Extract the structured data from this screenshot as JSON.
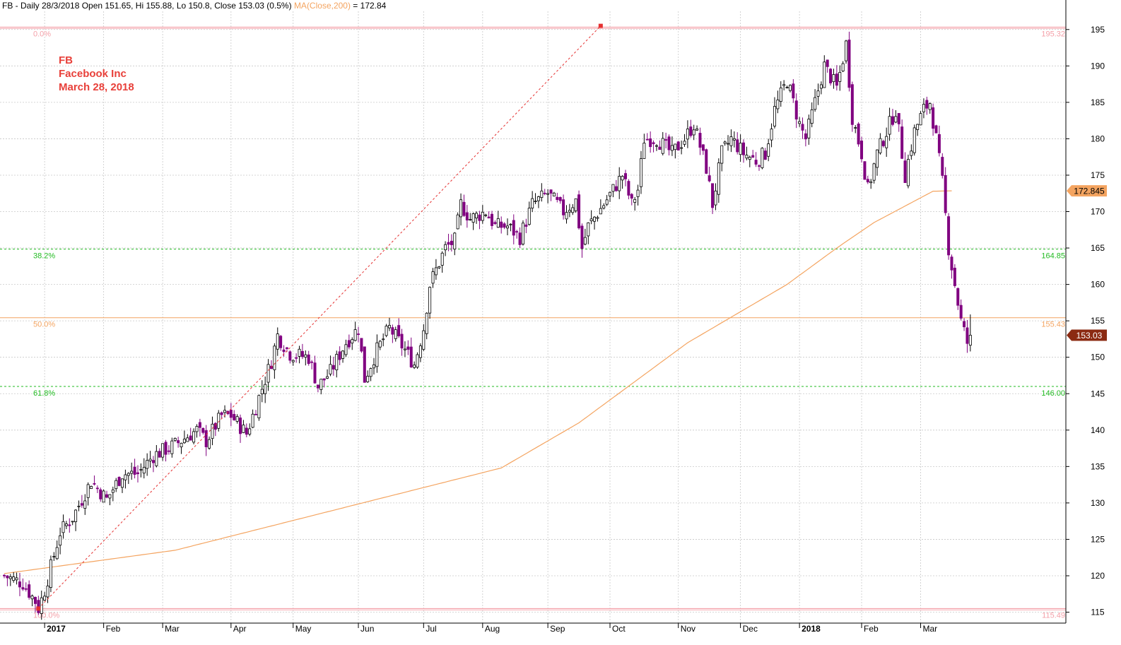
{
  "header": {
    "prefix": "FB - Daily 28/3/2018 Open 151.65, Hi 155.88, Lo 150.8, Close 153.03 (0.5%) ",
    "ma_label": "MA(Close,200)",
    "ma_value": " = 172.84"
  },
  "info": {
    "symbol": "FB",
    "company": "Facebook Inc",
    "date": "March 28, 2018"
  },
  "colors": {
    "up_candle": "#000000",
    "down_candle": "#800080",
    "ma_line": "#f4a460",
    "fib_extreme": "#f4a0a8",
    "fib_382_618": "#22bb22",
    "fib_500": "#f4a460",
    "trend_line": "#e53030",
    "grid": "#c8c8c8",
    "last_price_tag": "#8b2a12",
    "ma_tag": "#f4a460"
  },
  "chart_data": {
    "type": "candlestick",
    "y_range": [
      113.5,
      197.5
    ],
    "y_ticks": [
      115,
      120,
      125,
      130,
      135,
      140,
      145,
      150,
      155,
      160,
      165,
      170,
      175,
      180,
      185,
      190,
      195
    ],
    "x_labels": [
      {
        "label": "2017",
        "bold": true
      },
      {
        "label": "Feb"
      },
      {
        "label": "Mar"
      },
      {
        "label": "Apr"
      },
      {
        "label": "May"
      },
      {
        "label": "Jun"
      },
      {
        "label": "Jul"
      },
      {
        "label": "Aug"
      },
      {
        "label": "Sep"
      },
      {
        "label": "Oct"
      },
      {
        "label": "Nov"
      },
      {
        "label": "Dec"
      },
      {
        "label": "2018",
        "bold": true
      },
      {
        "label": "Feb"
      },
      {
        "label": "Mar"
      }
    ],
    "fib_levels": [
      {
        "pct": "0.0%",
        "value": 195.32
      },
      {
        "pct": "38.2%",
        "value": 164.85
      },
      {
        "pct": "50.0%",
        "value": 155.43
      },
      {
        "pct": "61.8%",
        "value": 146.0
      },
      {
        "pct": "100.0%",
        "value": 115.49
      }
    ],
    "price_tags": {
      "ma200": "172.845",
      "last_close": "153.03"
    },
    "ma200_anchors": [
      [
        0,
        120.3
      ],
      [
        55,
        123.5
      ],
      [
        120,
        130.5
      ],
      [
        160,
        134.8
      ],
      [
        185,
        141
      ],
      [
        220,
        152
      ],
      [
        252,
        160
      ],
      [
        268,
        165
      ],
      [
        280,
        168.5
      ],
      [
        299,
        172.8
      ],
      [
        305,
        172.85
      ]
    ],
    "fib_trendline": {
      "from": [
        11,
        115.5
      ],
      "to": [
        192,
        195.5
      ]
    },
    "close_anchors": [
      [
        0,
        120
      ],
      [
        6,
        119
      ],
      [
        10,
        116.5
      ],
      [
        11,
        115.5
      ],
      [
        13,
        118
      ],
      [
        18,
        126
      ],
      [
        22,
        128
      ],
      [
        28,
        133
      ],
      [
        33,
        130.5
      ],
      [
        38,
        134
      ],
      [
        43,
        134
      ],
      [
        48,
        136.5
      ],
      [
        55,
        138
      ],
      [
        62,
        140
      ],
      [
        65,
        138.5
      ],
      [
        70,
        142
      ],
      [
        73,
        142
      ],
      [
        78,
        139.5
      ],
      [
        82,
        144.5
      ],
      [
        86,
        149.5
      ],
      [
        88,
        153
      ],
      [
        92,
        150.5
      ],
      [
        98,
        150
      ],
      [
        101,
        146
      ],
      [
        105,
        148
      ],
      [
        110,
        152
      ],
      [
        114,
        154
      ],
      [
        116,
        147
      ],
      [
        120,
        151
      ],
      [
        124,
        154
      ],
      [
        129,
        151
      ],
      [
        132,
        149
      ],
      [
        135,
        154
      ],
      [
        137,
        160
      ],
      [
        139,
        162
      ],
      [
        142,
        165
      ],
      [
        145,
        166
      ],
      [
        147,
        171
      ],
      [
        150,
        169
      ],
      [
        155,
        170
      ],
      [
        158,
        168
      ],
      [
        162,
        168
      ],
      [
        166,
        166.5
      ],
      [
        170,
        171
      ],
      [
        175,
        172.5
      ],
      [
        180,
        170
      ],
      [
        184,
        171.5
      ],
      [
        186,
        165
      ],
      [
        188,
        168
      ],
      [
        193,
        171
      ],
      [
        196,
        173
      ],
      [
        199,
        175
      ],
      [
        202,
        171
      ],
      [
        204,
        173
      ],
      [
        206,
        180
      ],
      [
        210,
        180
      ],
      [
        215,
        178
      ],
      [
        219,
        180
      ],
      [
        222,
        182
      ],
      [
        226,
        176
      ],
      [
        228,
        171
      ],
      [
        231,
        178
      ],
      [
        234,
        180
      ],
      [
        238,
        178
      ],
      [
        242,
        177
      ],
      [
        245,
        178
      ],
      [
        248,
        184
      ],
      [
        252,
        188
      ],
      [
        256,
        182
      ],
      [
        258,
        180
      ],
      [
        261,
        185
      ],
      [
        264,
        190
      ],
      [
        268,
        187
      ],
      [
        271,
        193
      ],
      [
        273,
        183
      ],
      [
        276,
        178
      ],
      [
        278,
        173
      ],
      [
        281,
        178
      ],
      [
        284,
        181
      ],
      [
        287,
        184
      ],
      [
        290,
        175
      ],
      [
        293,
        181
      ],
      [
        296,
        184
      ],
      [
        298,
        185
      ],
      [
        300,
        180
      ],
      [
        302,
        174
      ],
      [
        304,
        165
      ],
      [
        306,
        160
      ],
      [
        308,
        155
      ],
      [
        310,
        152
      ],
      [
        311,
        153.03
      ]
    ],
    "n_bars": 312,
    "last_bar": {
      "open": 151.65,
      "high": 155.88,
      "low": 150.8,
      "close": 153.03
    }
  }
}
